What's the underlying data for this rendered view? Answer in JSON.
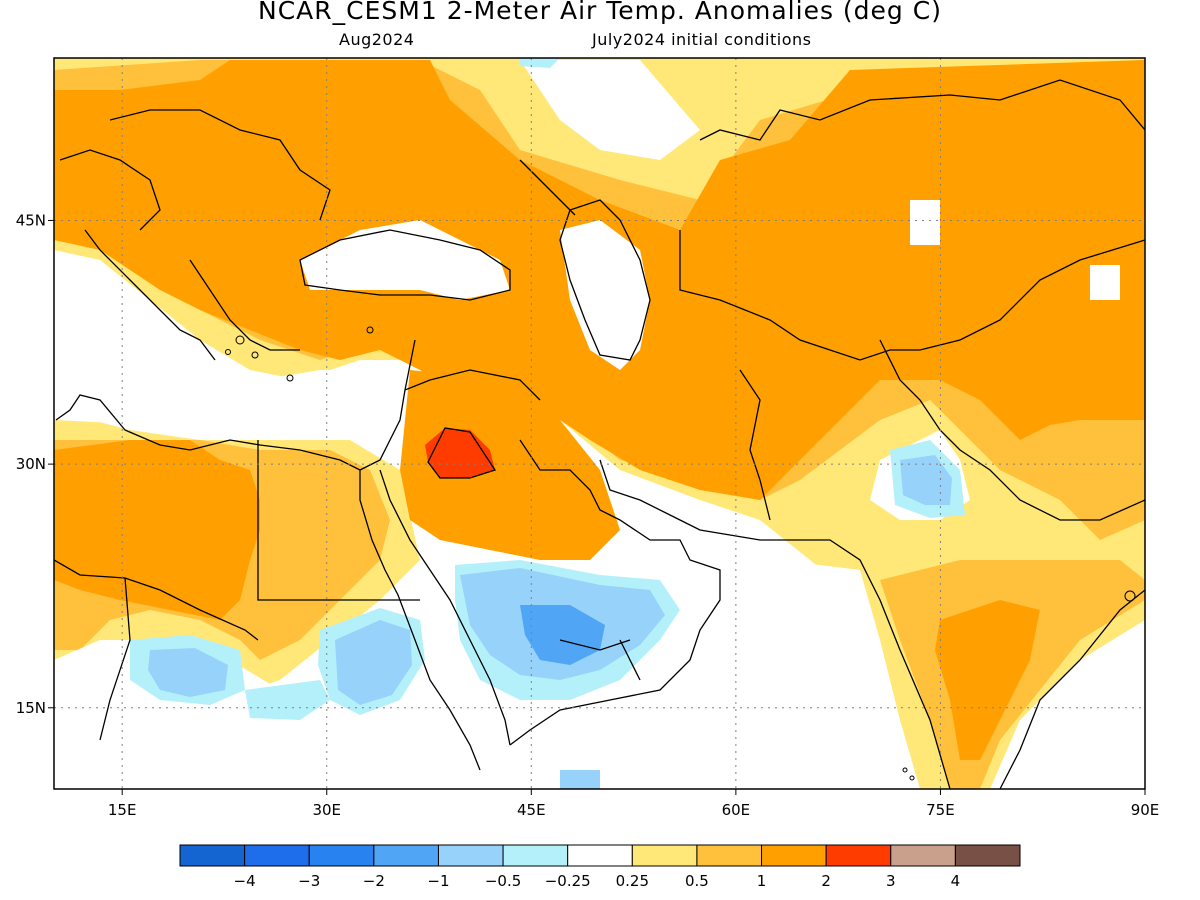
{
  "header": {
    "title": "NCAR_CESM1 2-Meter Air Temp. Anomalies (deg C)",
    "valid_month": "Aug2024",
    "init_conditions": "July2024 initial conditions"
  },
  "map": {
    "lon_range": [
      10,
      90
    ],
    "lat_range": [
      10,
      55
    ],
    "lon_ticks": [
      {
        "value": 15,
        "label": "15E"
      },
      {
        "value": 30,
        "label": "30E"
      },
      {
        "value": 45,
        "label": "45E"
      },
      {
        "value": 60,
        "label": "60E"
      },
      {
        "value": 75,
        "label": "75E"
      },
      {
        "value": 90,
        "label": "90E"
      }
    ],
    "lat_ticks": [
      {
        "value": 15,
        "label": "15N"
      },
      {
        "value": 30,
        "label": "30N"
      },
      {
        "value": 45,
        "label": "45N"
      }
    ]
  },
  "colorbar": {
    "colors": [
      "#1464d2",
      "#1e6eeb",
      "#2882f0",
      "#50a5f5",
      "#96d2fa",
      "#b4f0fa",
      "#ffffff",
      "#ffe878",
      "#ffc03c",
      "#ffa000",
      "#ff3c00",
      "#c8a08c",
      "#785046"
    ],
    "labels": [
      "−4",
      "−3",
      "−2",
      "−1",
      "−0.5",
      "−0.25",
      "0.25",
      "0.5",
      "1",
      "2",
      "3",
      "4"
    ]
  },
  "palette": {
    "weak_pos": "#ffe878",
    "pos_1": "#ffc03c",
    "pos_2": "#ffa000",
    "pos_3": "#ff3c00",
    "neg_025": "#b4f0fa",
    "neg_05": "#96d2fa",
    "neg_1": "#50a5f5"
  }
}
